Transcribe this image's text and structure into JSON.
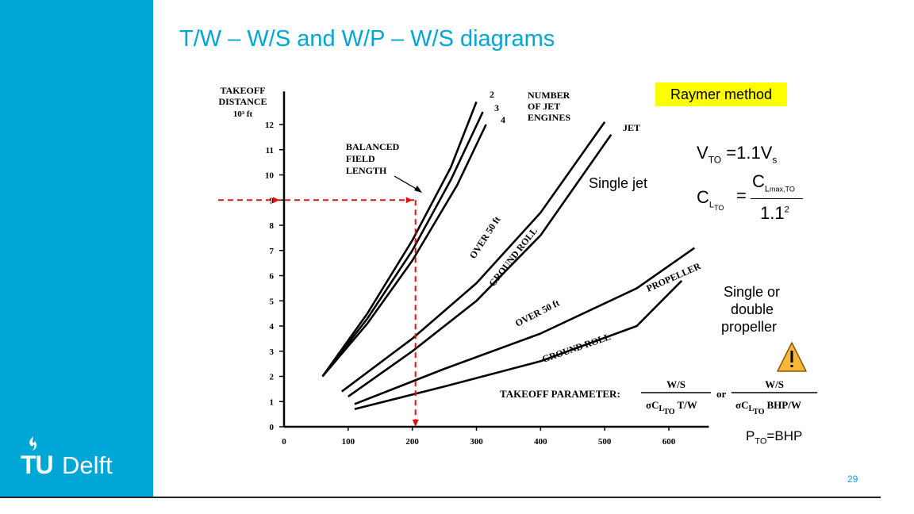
{
  "slide": {
    "title": "T/W – W/S and W/P – W/S diagrams",
    "page_number": "29",
    "logo_tu": "TU",
    "logo_delft": "Delft",
    "accent_color": "#00a6d6"
  },
  "annotations": {
    "raymer": "Raymer method",
    "single_jet": "Single jet",
    "single_or_double_1": "Single or",
    "single_or_double_2": "double",
    "single_or_double_3": "propeller",
    "vto_lhs": "V",
    "vto_sub": "TO",
    "vto_rhs_eq": "=1.1V",
    "vto_rhs_sub": "s",
    "cl_lhs": "C",
    "cl_lhs_sub1": "L",
    "cl_lhs_sub2": "TO",
    "cl_eq": "=",
    "cl_num": "C",
    "cl_num_sub1": "L",
    "cl_num_sub2": "max,TO",
    "cl_den": "1.1",
    "cl_den_sup": "2",
    "pto_p": "P",
    "pto_sub": "TO",
    "pto_rhs": "=BHP",
    "warning_icon": "warning-icon"
  },
  "chart_data": {
    "type": "line",
    "ylabel_lines": [
      "TAKEOFF",
      "DISTANCE",
      "10³ ft"
    ],
    "xlabel": "TAKEOFF PARAMETER:",
    "param_jet_num": "W/S",
    "param_jet_den": "σC",
    "param_jet_den_sub": "L",
    "param_jet_den_sub2": "TO",
    "param_jet_den_tail": "T/W",
    "param_or": "or",
    "param_prop_num": "W/S",
    "param_prop_den": "σC",
    "param_prop_den_sub": "L",
    "param_prop_den_sub2": "TO",
    "param_prop_den_tail": "BHP/W",
    "x_ticks": [
      "0",
      "100",
      "200",
      "300",
      "400",
      "500",
      "600"
    ],
    "y_ticks": [
      "0",
      "1",
      "2",
      "3",
      "4",
      "5",
      "6",
      "7",
      "8",
      "9",
      "10",
      "11",
      "12"
    ],
    "xlim": [
      0,
      650
    ],
    "ylim": [
      0,
      13
    ],
    "labels": {
      "engines_title": [
        "NUMBER",
        "OF JET",
        "ENGINES"
      ],
      "n2": "2",
      "n3": "3",
      "n4": "4",
      "bfl": [
        "BALANCED",
        "FIELD",
        "LENGTH"
      ],
      "jet": "JET",
      "over50_jet": "OVER 50 ft",
      "ground_jet": "GROUND ROLL",
      "propeller": "PROPELLER",
      "over50_prop": "OVER 50 ft",
      "ground_prop": "GROUND ROLL"
    },
    "series": [
      {
        "name": "2",
        "x": [
          60,
          130,
          200,
          260,
          300
        ],
        "y": [
          2.0,
          4.5,
          7.4,
          10.3,
          12.9
        ]
      },
      {
        "name": "3",
        "x": [
          60,
          130,
          200,
          260,
          310
        ],
        "y": [
          2.0,
          4.3,
          7.0,
          9.8,
          12.5
        ]
      },
      {
        "name": "4",
        "x": [
          60,
          130,
          200,
          270,
          315
        ],
        "y": [
          2.0,
          4.1,
          6.6,
          9.6,
          12.0
        ]
      },
      {
        "name": "OVER 50 ft",
        "x": [
          90,
          200,
          300,
          400,
          500
        ],
        "y": [
          1.4,
          3.5,
          5.7,
          8.5,
          12.1
        ]
      },
      {
        "name": "GROUND ROLL",
        "x": [
          100,
          200,
          300,
          400,
          510
        ],
        "y": [
          1.2,
          3.0,
          5.0,
          7.6,
          11.6
        ]
      },
      {
        "name": "OVER 50 ft",
        "x": [
          110,
          250,
          400,
          550,
          640
        ],
        "y": [
          0.9,
          2.3,
          3.7,
          5.5,
          7.1
        ]
      },
      {
        "name": "GROUND ROLL",
        "x": [
          110,
          250,
          400,
          550,
          620
        ],
        "y": [
          0.7,
          1.6,
          2.6,
          4.0,
          5.8
        ]
      }
    ],
    "example_path": {
      "y_start": 9,
      "x_intersect": 205
    }
  }
}
